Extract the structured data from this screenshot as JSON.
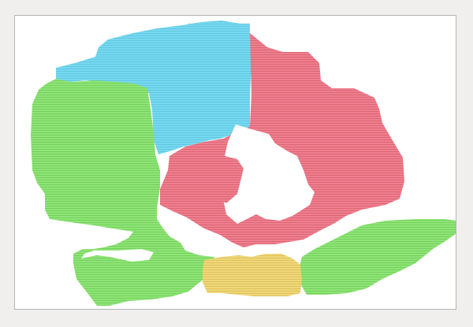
{
  "canvas": {
    "background": "#ffffff",
    "border_color": "#b3b3b3",
    "page_background": "#f0efee"
  },
  "segments": [
    {
      "name": "blue-segment",
      "color": "#77d9ef",
      "hatch": "#5cc3e0"
    },
    {
      "name": "red-segment",
      "color": "#ee7f8e",
      "hatch": "#d9606f"
    },
    {
      "name": "green-segment",
      "color": "#8ee476",
      "hatch": "#6fcc57"
    },
    {
      "name": "yellow-segment",
      "color": "#f0d779",
      "hatch": "#d9bd55"
    }
  ]
}
